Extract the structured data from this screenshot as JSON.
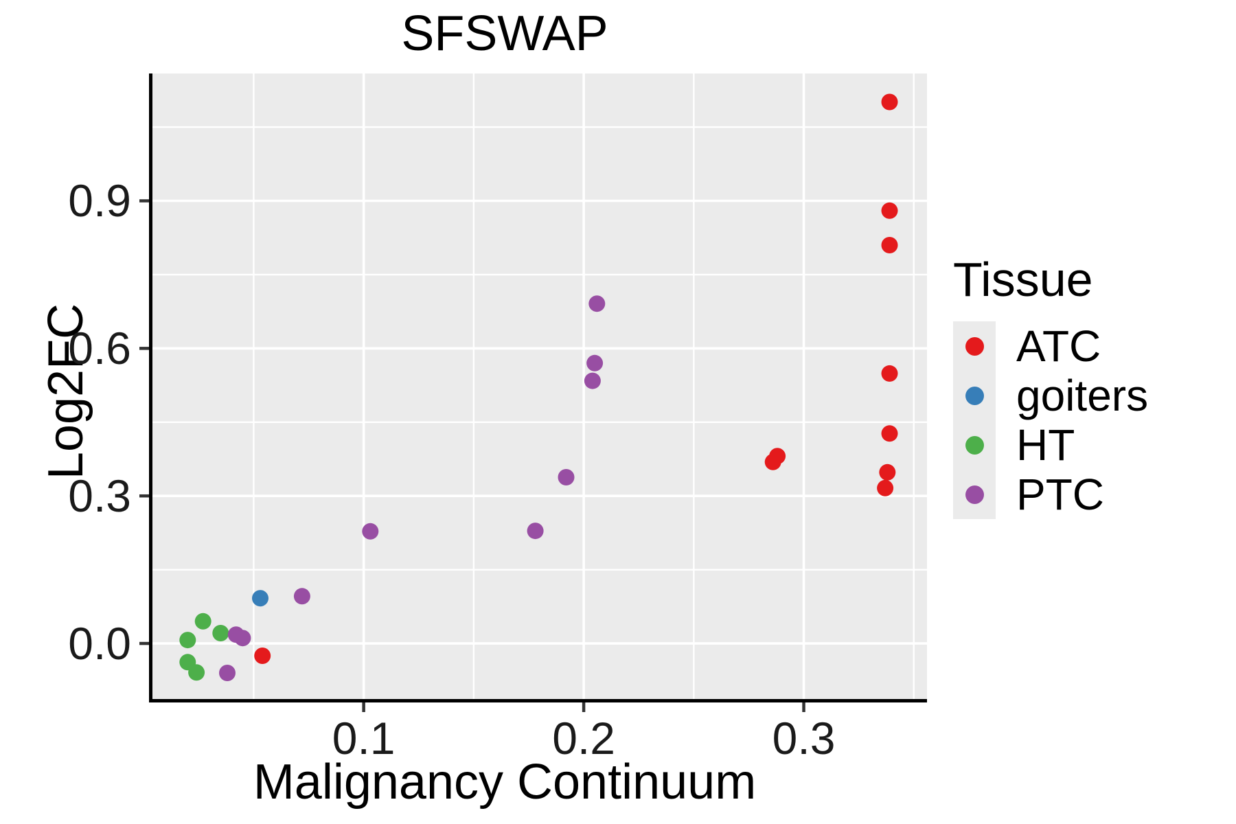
{
  "title": "SFSWAP",
  "colors": {
    "panel_bg": "#ebebeb",
    "grid": "#ffffff",
    "axis_line": "#000000",
    "tick_mark": "#333333",
    "text": "#000000",
    "legend_key_bg": "#ebebeb",
    "atc": "#e41a1c",
    "goiters": "#377eb8",
    "ht": "#4daf4a",
    "ptc": "#984ea3"
  },
  "legend": {
    "title": "Tissue",
    "position": "right",
    "items": [
      {
        "label": "ATC",
        "color": "#e41a1c"
      },
      {
        "label": "goiters",
        "color": "#377eb8"
      },
      {
        "label": "HT",
        "color": "#4daf4a"
      },
      {
        "label": "PTC",
        "color": "#984ea3"
      }
    ]
  },
  "chart_data": {
    "type": "scatter",
    "title": "SFSWAP",
    "xlabel": "Malignancy Continuum",
    "ylabel": "Log2FC",
    "xlim": [
      0.004,
      0.356
    ],
    "ylim": [
      -0.113,
      1.159
    ],
    "x_major_ticks": [
      0.1,
      0.2,
      0.3
    ],
    "x_tick_labels": [
      "0.1",
      "0.2",
      "0.3"
    ],
    "x_minor_ticks": [
      0.05,
      0.15,
      0.25,
      0.35
    ],
    "y_major_ticks": [
      0.0,
      0.3,
      0.6,
      0.9
    ],
    "y_tick_labels": [
      "0.0",
      "0.3",
      "0.6",
      "0.9"
    ],
    "y_minor_ticks": [
      0.15,
      0.45,
      0.75,
      1.05
    ],
    "grid": "white major and minor gridlines on gray panel",
    "legend_position": "right",
    "legend_title": "Tissue",
    "series": [
      {
        "name": "ATC",
        "color": "#e41a1c",
        "points": [
          [
            0.339,
            1.101
          ],
          [
            0.339,
            0.88
          ],
          [
            0.339,
            0.81
          ],
          [
            0.339,
            0.549
          ],
          [
            0.339,
            0.427
          ],
          [
            0.338,
            0.348
          ],
          [
            0.337,
            0.316
          ],
          [
            0.288,
            0.381
          ],
          [
            0.286,
            0.369
          ],
          [
            0.054,
            -0.025
          ]
        ]
      },
      {
        "name": "goiters",
        "color": "#377eb8",
        "points": [
          [
            0.053,
            0.092
          ]
        ]
      },
      {
        "name": "HT",
        "color": "#4daf4a",
        "points": [
          [
            0.027,
            0.045
          ],
          [
            0.035,
            0.021
          ],
          [
            0.02,
            0.007
          ],
          [
            0.02,
            -0.038
          ],
          [
            0.024,
            -0.059
          ]
        ]
      },
      {
        "name": "PTC",
        "color": "#984ea3",
        "points": [
          [
            0.206,
            0.691
          ],
          [
            0.205,
            0.57
          ],
          [
            0.204,
            0.534
          ],
          [
            0.192,
            0.338
          ],
          [
            0.178,
            0.229
          ],
          [
            0.103,
            0.228
          ],
          [
            0.072,
            0.096
          ],
          [
            0.042,
            0.018
          ],
          [
            0.045,
            0.011
          ],
          [
            0.038,
            -0.06
          ]
        ]
      }
    ]
  }
}
